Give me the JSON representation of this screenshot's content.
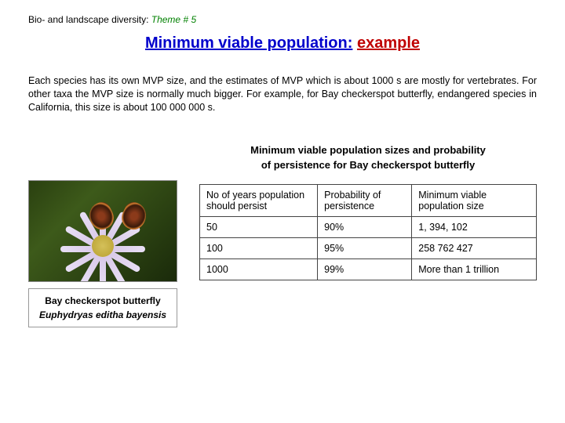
{
  "header": {
    "prefix": "Bio-  and landscape diversity: ",
    "theme": "Theme # 5"
  },
  "title": {
    "main": "Minimum viable population:",
    "example": "example"
  },
  "body_text": "Each species has its own MVP size, and the estimates of MVP which is about 1000 s are mostly for vertebrates. For other taxa the MVP size is normally much bigger. For example, for Bay checkerspot butterfly, endangered species in California, this size is about 100 000 000 s.",
  "image_caption": {
    "name": "Bay checkerspot butterfly",
    "latin": "Euphydryas editha bayensis"
  },
  "table": {
    "caption_line1": "Minimum viable population sizes and probability",
    "caption_line2": "of persistence for Bay checkerspot butterfly",
    "headers": {
      "col1": "No of years population should persist",
      "col2": "Probability of persistence",
      "col3": "Minimum viable population size"
    },
    "rows": [
      {
        "years": "50",
        "prob": "90%",
        "mvp": "1, 394, 102"
      },
      {
        "years": "100",
        "prob": "95%",
        "mvp": "258 762 427"
      },
      {
        "years": "1000",
        "prob": "99%",
        "mvp": "More than 1 trillion"
      }
    ]
  },
  "colors": {
    "theme_green": "#008000",
    "title_blue": "#0000cc",
    "title_red": "#c00000"
  }
}
